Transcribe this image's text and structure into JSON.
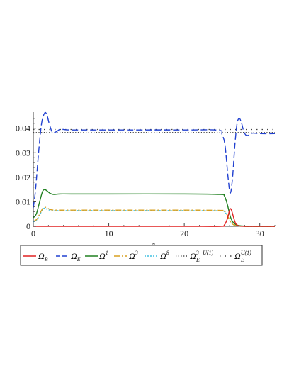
{
  "chart_data": {
    "type": "line",
    "title": "",
    "xlabel": "N",
    "ylabel": "",
    "xlim": [
      0,
      32
    ],
    "ylim": [
      0,
      0.046
    ],
    "xticks": [
      0,
      10,
      20,
      30
    ],
    "yticks": [
      0,
      0.01,
      0.02,
      0.03,
      0.04
    ],
    "xtick_labels": [
      "0",
      "10",
      "20",
      "30"
    ],
    "ytick_labels": [
      "0",
      "0.01",
      "0.02",
      "0.03",
      "0.04"
    ],
    "grid": false,
    "legend_position": "bottom",
    "series": [
      {
        "name": "Ω_B",
        "base": "Ω",
        "sub": "B",
        "sup": "",
        "color": "#e02020",
        "dash": "",
        "x": [
          0,
          10,
          20,
          24.8,
          25.3,
          25.7,
          26.0,
          26.2,
          26.5,
          26.8,
          27.2,
          28,
          32
        ],
        "y": [
          0,
          0,
          0,
          0,
          0.0005,
          0.003,
          0.0065,
          0.007,
          0.004,
          0.0012,
          0.0002,
          0,
          0
        ]
      },
      {
        "name": "Ω_E",
        "base": "Ω",
        "sub": "E",
        "sup": "",
        "color": "#2040d0",
        "dash": "9,4",
        "x": [
          0,
          0.3,
          0.7,
          1.1,
          1.5,
          1.8,
          2.1,
          2.5,
          3.0,
          3.5,
          4.0,
          5,
          10,
          20,
          24.5,
          25.0,
          25.4,
          25.8,
          26.1,
          26.4,
          26.7,
          27.0,
          27.3,
          27.6,
          27.9,
          28.3,
          29,
          30,
          32
        ],
        "y": [
          0.0075,
          0.015,
          0.03,
          0.042,
          0.0462,
          0.0455,
          0.042,
          0.0385,
          0.0385,
          0.0395,
          0.0395,
          0.0393,
          0.0393,
          0.0393,
          0.0392,
          0.0375,
          0.033,
          0.02,
          0.0135,
          0.02,
          0.033,
          0.042,
          0.044,
          0.042,
          0.0385,
          0.037,
          0.038,
          0.0378,
          0.0378
        ]
      },
      {
        "name": "Ω^1",
        "base": "Ω",
        "sub": "",
        "sup": "1",
        "color": "#208020",
        "dash": "",
        "x": [
          0,
          0.4,
          0.8,
          1.2,
          1.5,
          1.8,
          2.2,
          2.7,
          3.5,
          5,
          10,
          20,
          24.8,
          25.3,
          25.7,
          26.1,
          26.5,
          27,
          27.5,
          28.5,
          32
        ],
        "y": [
          0.0035,
          0.005,
          0.0095,
          0.014,
          0.015,
          0.0145,
          0.0135,
          0.013,
          0.0132,
          0.0132,
          0.0132,
          0.0132,
          0.013,
          0.0125,
          0.009,
          0.004,
          0.0015,
          0.0005,
          0.0002,
          0,
          0
        ]
      },
      {
        "name": "Ω^3",
        "base": "Ω",
        "sub": "",
        "sup": "3",
        "color": "#d8a020",
        "dash": "8,3,2,3",
        "x": [
          0,
          0.5,
          1.0,
          1.4,
          1.8,
          2.3,
          3.0,
          5,
          10,
          20,
          24.8,
          25.3,
          25.7,
          26.1,
          26.5,
          27,
          28,
          32
        ],
        "y": [
          0.002,
          0.003,
          0.006,
          0.0078,
          0.0075,
          0.0068,
          0.0066,
          0.0066,
          0.0066,
          0.0066,
          0.0065,
          0.0062,
          0.0045,
          0.002,
          0.0007,
          0.0002,
          0,
          0
        ]
      },
      {
        "name": "Ω^8",
        "base": "Ω",
        "sub": "",
        "sup": "8",
        "color": "#40c0e0",
        "dash": "2,2",
        "x": [
          0,
          0.5,
          1.0,
          1.4,
          1.8,
          2.3,
          3.0,
          5,
          10,
          20,
          24.8,
          25.3,
          25.7,
          26.1,
          26.5,
          27,
          28,
          32
        ],
        "y": [
          0.0018,
          0.0028,
          0.0055,
          0.0073,
          0.007,
          0.0065,
          0.0064,
          0.0064,
          0.0064,
          0.0064,
          0.0063,
          0.006,
          0.0044,
          0.002,
          0.0007,
          0.0002,
          0,
          0
        ]
      },
      {
        "name": "Ω_E^{3-U(1)}",
        "base": "Ω",
        "sub": "E",
        "sup": "3−U(1)",
        "color": "#444444",
        "dash": "1.2,2.5",
        "x": [
          0,
          32
        ],
        "y": [
          0.0383,
          0.0383
        ]
      },
      {
        "name": "Ω_E^{U(1)}",
        "base": "Ω",
        "sub": "E",
        "sup": "U(1)",
        "color": "#444444",
        "dash": "1.5,6",
        "x": [
          0,
          32
        ],
        "y": [
          0.0395,
          0.0395
        ]
      }
    ]
  }
}
